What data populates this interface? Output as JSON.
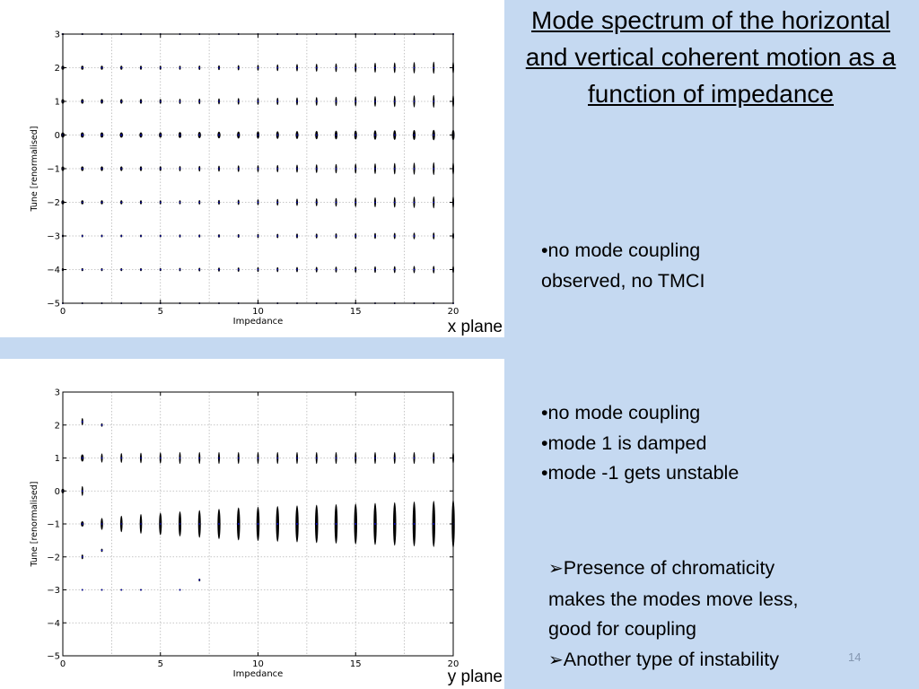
{
  "slide": {
    "title": "Mode spectrum of the horizontal and vertical coherent motion as a function of impedance",
    "slide_number": "14",
    "bullets_x": [
      "•no mode coupling",
      "observed, no TMCI"
    ],
    "bullets_y": [
      "•no mode coupling",
      "•mode 1 is damped",
      "•mode -1 gets unstable"
    ],
    "notes": [
      {
        "arrow": "➢",
        "lines": [
          "Presence of chromaticity",
          "makes the modes move less,",
          "good for coupling"
        ]
      },
      {
        "arrow": "➢",
        "lines": [
          "Another type of instability"
        ]
      }
    ],
    "colors": {
      "background": "#c5d9f1",
      "marker": "#000000",
      "marker_core": "#0000cc"
    }
  },
  "chart_data": [
    {
      "type": "scatter",
      "plane_label": "x plane",
      "xlabel": "Impedance",
      "ylabel": "Tune [renormalised]",
      "xlim": [
        0,
        20
      ],
      "ylim": [
        -5,
        3
      ],
      "xticks": [
        0,
        5,
        10,
        15,
        20
      ],
      "yticks": [
        -5,
        -4,
        -3,
        -2,
        -1,
        0,
        1,
        2,
        3
      ],
      "ytick_labels": [
        "−5",
        "−4",
        "−3",
        "−2",
        "−1",
        "0",
        "1",
        "2",
        "3"
      ],
      "grid": true,
      "impedance": [
        0,
        1,
        2,
        3,
        4,
        5,
        6,
        7,
        8,
        9,
        10,
        11,
        12,
        13,
        14,
        15,
        16,
        17,
        18,
        19,
        20
      ],
      "modes": [
        3,
        2,
        1,
        0,
        -1,
        -2,
        -3,
        -4,
        -5
      ],
      "series": [
        {
          "mode": 3,
          "width": [
            0.13,
            0.12,
            0.12,
            0.11,
            0.1,
            0.09,
            0.08,
            0.07,
            0.06,
            0.05,
            0.05,
            0.04,
            0.04,
            0.04,
            0.03,
            0.03,
            0.03,
            0.03,
            0.02,
            0.02,
            0.02
          ],
          "height": [
            0.02,
            0.02,
            0.02,
            0.02,
            0.02,
            0.02,
            0.02,
            0.02,
            0.02,
            0.02,
            0.02,
            0.02,
            0.02,
            0.02,
            0.02,
            0.02,
            0.02,
            0.02,
            0.02,
            0.02,
            0.02
          ]
        },
        {
          "mode": 2,
          "width": [
            0.15,
            0.13,
            0.12,
            0.11,
            0.1,
            0.09,
            0.08,
            0.07,
            0.06,
            0.06,
            0.05,
            0.05,
            0.05,
            0.05,
            0.05,
            0.05,
            0.05,
            0.05,
            0.05,
            0.05,
            0.05
          ],
          "height": [
            0.12,
            0.12,
            0.12,
            0.12,
            0.12,
            0.12,
            0.12,
            0.13,
            0.14,
            0.16,
            0.18,
            0.2,
            0.22,
            0.24,
            0.26,
            0.28,
            0.3,
            0.32,
            0.34,
            0.36,
            0.38
          ]
        },
        {
          "mode": 1,
          "width": [
            0.15,
            0.14,
            0.13,
            0.12,
            0.11,
            0.1,
            0.08,
            0.07,
            0.06,
            0.06,
            0.05,
            0.05,
            0.05,
            0.05,
            0.05,
            0.05,
            0.05,
            0.05,
            0.05,
            0.05,
            0.05
          ],
          "height": [
            0.14,
            0.14,
            0.14,
            0.14,
            0.14,
            0.14,
            0.16,
            0.17,
            0.18,
            0.2,
            0.21,
            0.22,
            0.24,
            0.26,
            0.28,
            0.3,
            0.32,
            0.34,
            0.36,
            0.38,
            0.4
          ]
        },
        {
          "mode": 0,
          "width": [
            0.18,
            0.17,
            0.16,
            0.16,
            0.15,
            0.15,
            0.15,
            0.15,
            0.15,
            0.15,
            0.14,
            0.14,
            0.14,
            0.14,
            0.14,
            0.14,
            0.14,
            0.14,
            0.14,
            0.14,
            0.14
          ],
          "height": [
            0.16,
            0.16,
            0.16,
            0.16,
            0.16,
            0.16,
            0.18,
            0.19,
            0.2,
            0.21,
            0.22,
            0.23,
            0.24,
            0.25,
            0.26,
            0.27,
            0.28,
            0.29,
            0.3,
            0.31,
            0.32
          ]
        },
        {
          "mode": -1,
          "width": [
            0.15,
            0.14,
            0.13,
            0.12,
            0.11,
            0.1,
            0.08,
            0.07,
            0.06,
            0.06,
            0.05,
            0.05,
            0.05,
            0.05,
            0.05,
            0.05,
            0.05,
            0.05,
            0.05,
            0.05,
            0.05
          ],
          "height": [
            0.14,
            0.14,
            0.14,
            0.14,
            0.14,
            0.14,
            0.16,
            0.17,
            0.18,
            0.2,
            0.21,
            0.22,
            0.24,
            0.26,
            0.28,
            0.3,
            0.32,
            0.34,
            0.36,
            0.38,
            0.4
          ]
        },
        {
          "mode": -2,
          "width": [
            0.15,
            0.13,
            0.12,
            0.11,
            0.1,
            0.09,
            0.08,
            0.07,
            0.06,
            0.06,
            0.05,
            0.05,
            0.05,
            0.05,
            0.05,
            0.05,
            0.05,
            0.05,
            0.05,
            0.05,
            0.05
          ],
          "height": [
            0.12,
            0.12,
            0.12,
            0.12,
            0.12,
            0.12,
            0.12,
            0.13,
            0.14,
            0.16,
            0.18,
            0.2,
            0.22,
            0.24,
            0.26,
            0.28,
            0.3,
            0.32,
            0.34,
            0.36,
            0.38
          ]
        },
        {
          "mode": -3,
          "width": [
            0.1,
            0.09,
            0.08,
            0.08,
            0.07,
            0.06,
            0.05,
            0.05,
            0.04,
            0.04,
            0.04,
            0.04,
            0.04,
            0.04,
            0.04,
            0.04,
            0.04,
            0.04,
            0.04,
            0.04,
            0.04
          ],
          "height": [
            0.08,
            0.08,
            0.08,
            0.08,
            0.08,
            0.08,
            0.09,
            0.09,
            0.1,
            0.11,
            0.12,
            0.13,
            0.14,
            0.15,
            0.16,
            0.17,
            0.18,
            0.19,
            0.2,
            0.21,
            0.22
          ]
        },
        {
          "mode": -4,
          "width": [
            0.11,
            0.1,
            0.09,
            0.08,
            0.08,
            0.07,
            0.06,
            0.05,
            0.05,
            0.04,
            0.04,
            0.04,
            0.04,
            0.04,
            0.04,
            0.04,
            0.04,
            0.04,
            0.04,
            0.04,
            0.04
          ],
          "height": [
            0.09,
            0.09,
            0.09,
            0.09,
            0.09,
            0.09,
            0.1,
            0.11,
            0.12,
            0.13,
            0.14,
            0.15,
            0.16,
            0.17,
            0.18,
            0.19,
            0.2,
            0.21,
            0.22,
            0.23,
            0.24
          ]
        },
        {
          "mode": -5,
          "width": [
            0.1,
            0.09,
            0.08,
            0.07,
            0.06,
            0.05,
            0.04,
            0.03,
            0.03,
            0.02,
            0.02,
            0.02,
            0.02,
            0.02,
            0.02,
            0.02,
            0.02,
            0.02,
            0.02,
            0.02,
            0.02
          ],
          "height": [
            0.02,
            0.02,
            0.02,
            0.02,
            0.02,
            0.02,
            0.02,
            0.02,
            0.02,
            0.02,
            0.02,
            0.02,
            0.02,
            0.02,
            0.02,
            0.02,
            0.02,
            0.02,
            0.02,
            0.02,
            0.02
          ]
        }
      ]
    },
    {
      "type": "scatter",
      "plane_label": "y plane",
      "xlabel": "Impedance",
      "ylabel": "Tune [renormalised]",
      "xlim": [
        0,
        20
      ],
      "ylim": [
        -5,
        3
      ],
      "xticks": [
        0,
        5,
        10,
        15,
        20
      ],
      "yticks": [
        -5,
        -4,
        -3,
        -2,
        -1,
        0,
        1,
        2,
        3
      ],
      "ytick_labels": [
        "−5",
        "−4",
        "−3",
        "−2",
        "−1",
        "0",
        "1",
        "2",
        "3"
      ],
      "grid": true,
      "impedance": [
        0,
        1,
        2,
        3,
        4,
        5,
        6,
        7,
        8,
        9,
        10,
        11,
        12,
        13,
        14,
        15,
        16,
        17,
        18,
        19,
        20
      ],
      "series": [
        {
          "mode": 0,
          "points": [
            [
              0,
              0.0,
              0.15,
              0.14
            ],
            [
              1,
              0.0,
              0.05,
              0.3
            ]
          ]
        },
        {
          "mode": 1,
          "points": [
            [
              1,
              1.0,
              0.15,
              0.22
            ],
            [
              2,
              1.0,
              0.05,
              0.28
            ],
            [
              3,
              1.0,
              0.05,
              0.3
            ],
            [
              4,
              1.0,
              0.05,
              0.32
            ],
            [
              5,
              1.0,
              0.05,
              0.34
            ],
            [
              6,
              1.0,
              0.05,
              0.36
            ],
            [
              7,
              1.0,
              0.05,
              0.36
            ],
            [
              8,
              1.0,
              0.05,
              0.36
            ],
            [
              9,
              1.0,
              0.05,
              0.36
            ],
            [
              10,
              1.0,
              0.05,
              0.36
            ],
            [
              11,
              1.0,
              0.05,
              0.36
            ],
            [
              12,
              1.0,
              0.05,
              0.36
            ],
            [
              13,
              1.0,
              0.05,
              0.36
            ],
            [
              14,
              1.0,
              0.05,
              0.36
            ],
            [
              15,
              1.0,
              0.05,
              0.36
            ],
            [
              16,
              1.0,
              0.05,
              0.36
            ],
            [
              17,
              1.0,
              0.05,
              0.36
            ],
            [
              18,
              1.0,
              0.05,
              0.36
            ],
            [
              19,
              1.0,
              0.05,
              0.36
            ],
            [
              20,
              1.0,
              0.05,
              0.36
            ]
          ]
        },
        {
          "mode": -1,
          "points": [
            [
              1,
              -1.0,
              0.15,
              0.16
            ],
            [
              2,
              -1.0,
              0.12,
              0.36
            ],
            [
              3,
              -1.0,
              0.12,
              0.5
            ],
            [
              4,
              -1.0,
              0.12,
              0.6
            ],
            [
              5,
              -1.0,
              0.14,
              0.68
            ],
            [
              6,
              -1.0,
              0.14,
              0.76
            ],
            [
              7,
              -1.0,
              0.14,
              0.84
            ],
            [
              8,
              -1.0,
              0.15,
              0.92
            ],
            [
              9,
              -1.0,
              0.16,
              1.0
            ],
            [
              10,
              -1.0,
              0.16,
              1.04
            ],
            [
              11,
              -1.0,
              0.16,
              1.08
            ],
            [
              12,
              -1.0,
              0.16,
              1.12
            ],
            [
              13,
              -1.0,
              0.16,
              1.16
            ],
            [
              14,
              -1.0,
              0.16,
              1.2
            ],
            [
              15,
              -1.0,
              0.16,
              1.24
            ],
            [
              16,
              -1.0,
              0.16,
              1.28
            ],
            [
              17,
              -1.0,
              0.16,
              1.32
            ],
            [
              18,
              -1.0,
              0.16,
              1.36
            ],
            [
              19,
              -1.0,
              0.16,
              1.4
            ],
            [
              20,
              -1.0,
              0.16,
              1.48
            ]
          ]
        },
        {
          "mode": 2,
          "points": [
            [
              1,
              2.1,
              0.05,
              0.22
            ],
            [
              2,
              2.0,
              0.03,
              0.1
            ]
          ]
        },
        {
          "mode": -2,
          "points": [
            [
              1,
              -2.0,
              0.04,
              0.14
            ],
            [
              2,
              -1.8,
              0.03,
              0.1
            ]
          ]
        },
        {
          "mode": -3,
          "points": [
            [
              1,
              -3.0,
              0.03,
              0.04
            ],
            [
              2,
              -3.0,
              0.03,
              0.04
            ],
            [
              3,
              -3.0,
              0.03,
              0.04
            ],
            [
              4,
              -3.0,
              0.03,
              0.04
            ],
            [
              6,
              -3.0,
              0.03,
              0.04
            ],
            [
              7,
              -2.7,
              0.02,
              0.08
            ]
          ]
        }
      ]
    }
  ]
}
